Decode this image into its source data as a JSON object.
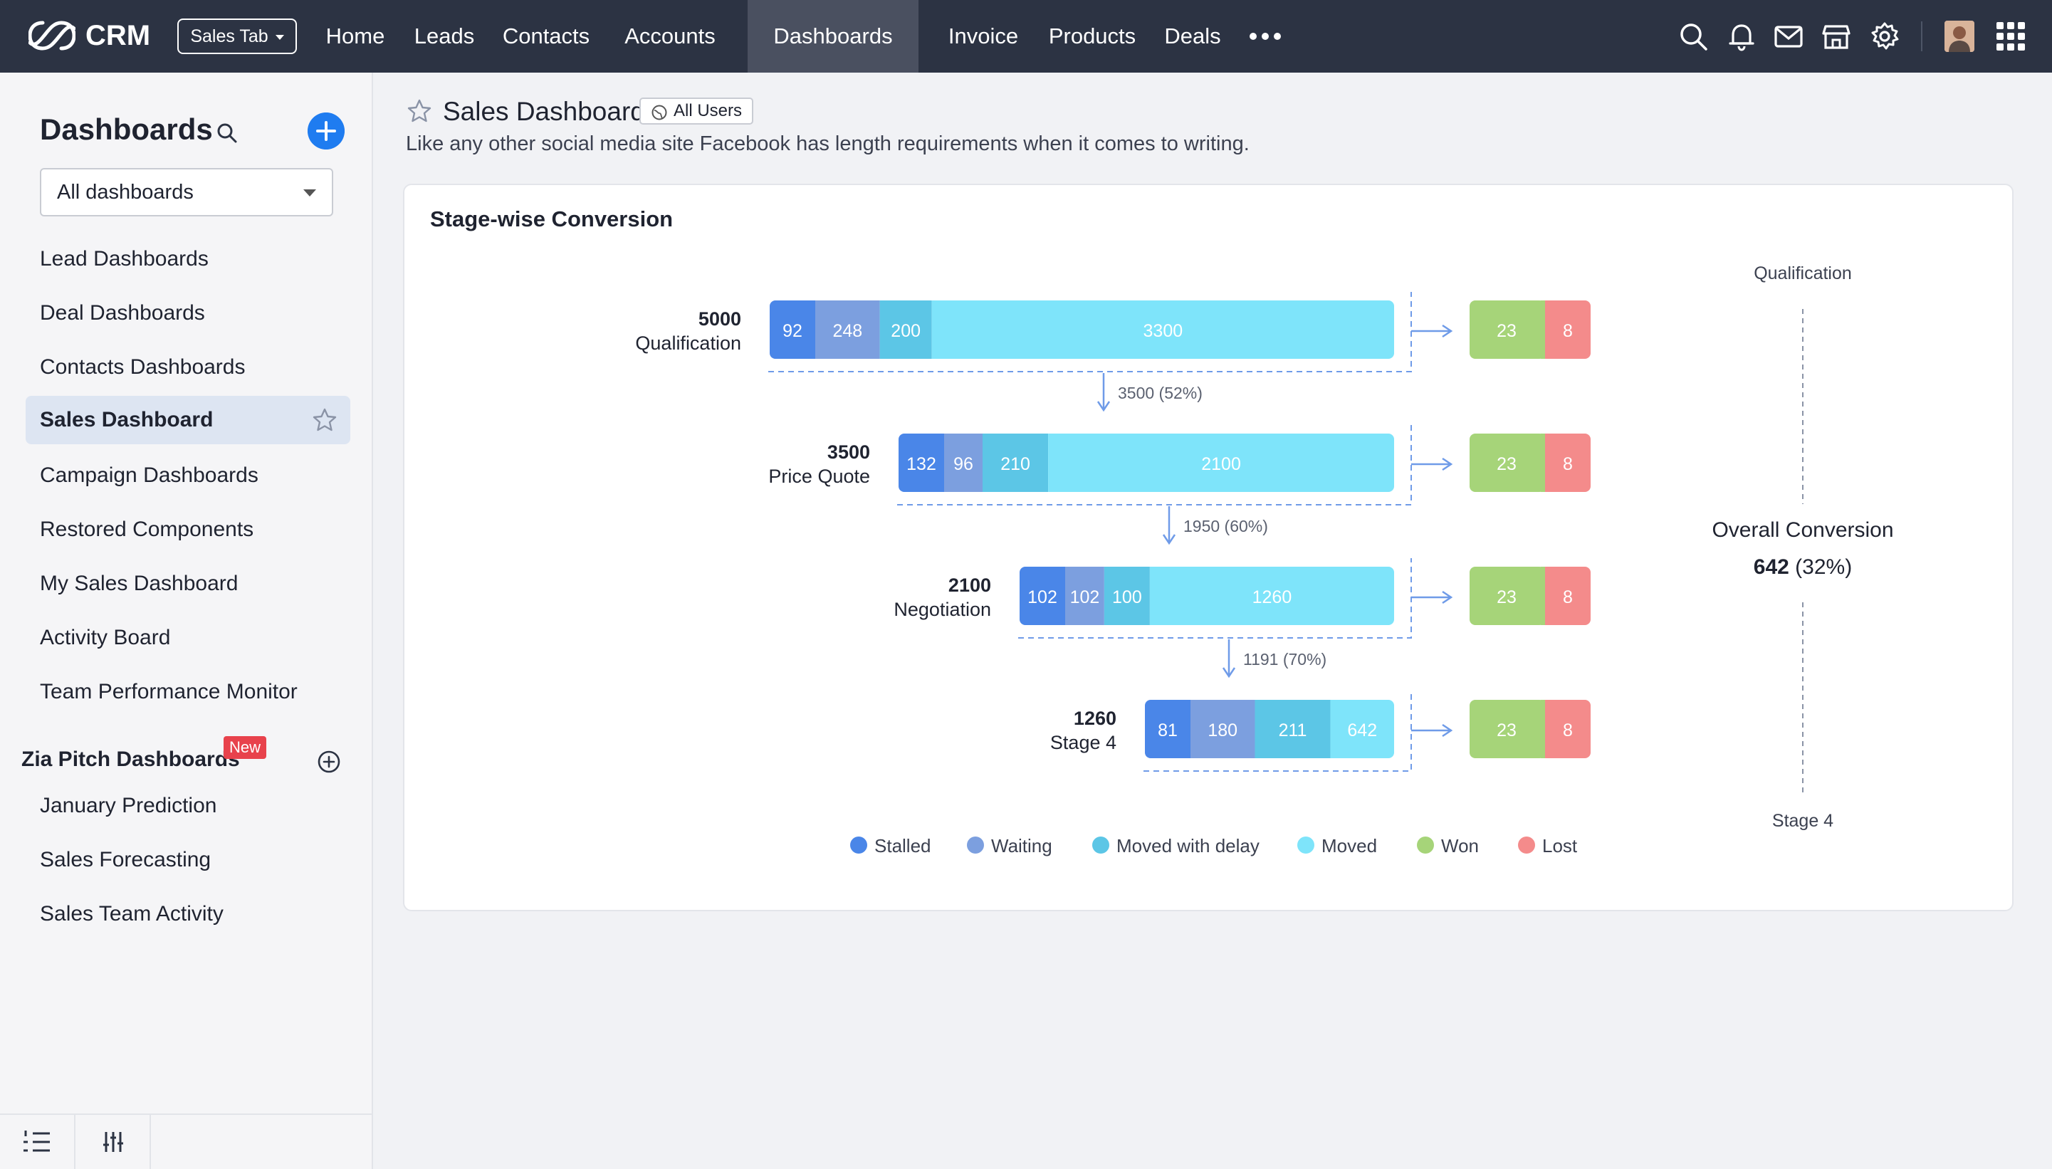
{
  "app": {
    "name": "CRM"
  },
  "topbar": {
    "sales_tab_label": "Sales Tab",
    "nav": [
      "Home",
      "Leads",
      "Contacts",
      "Accounts",
      "Dashboards",
      "Invoice",
      "Products",
      "Deals"
    ],
    "active_nav": "Dashboards",
    "icons": [
      "search-icon",
      "bell-icon",
      "mail-icon",
      "store-icon",
      "gear-icon",
      "avatar",
      "apps-grid-icon"
    ]
  },
  "sidebar": {
    "title": "Dashboards",
    "filter_value": "All dashboards",
    "items": [
      {
        "label": "Lead Dashboards"
      },
      {
        "label": "Deal Dashboards"
      },
      {
        "label": "Contacts Dashboards"
      },
      {
        "label": "Sales Dashboard",
        "active": true
      },
      {
        "label": "Campaign Dashboards"
      },
      {
        "label": "Restored Components"
      },
      {
        "label": "My Sales Dashboard"
      },
      {
        "label": "Activity Board"
      },
      {
        "label": "Team Performance Monitor"
      }
    ],
    "section_title": "Zia Pitch Dashboards",
    "new_badge": "New",
    "section_items": [
      {
        "label": "January Prediction"
      },
      {
        "label": "Sales Forecasting"
      },
      {
        "label": "Sales Team Activity"
      }
    ]
  },
  "dashboard": {
    "title": "Sales Dashboard",
    "visibility": "All Users",
    "description": "Like any other social media site Facebook has length requirements when it comes to writing."
  },
  "chart_data": {
    "type": "bar",
    "title": "Stage-wise Conversion",
    "colors": {
      "stalled": "#4a86e8",
      "waiting": "#7c9fdf",
      "moved_with_delay": "#5cc6e6",
      "moved": "#7ee4fa",
      "won": "#a6d479",
      "lost": "#f48b8b"
    },
    "stages": [
      {
        "name": "Qualification",
        "total": 5000,
        "stalled": 92,
        "waiting": 248,
        "moved_with_delay": 200,
        "moved": 3300,
        "won": 23,
        "lost": 8,
        "conversion_label": "3500 (52%)"
      },
      {
        "name": "Price Quote",
        "total": 3500,
        "stalled": 132,
        "waiting": 96,
        "moved_with_delay": 210,
        "moved": 2100,
        "won": 23,
        "lost": 8,
        "conversion_label": "1950 (60%)"
      },
      {
        "name": "Negotiation",
        "total": 2100,
        "stalled": 102,
        "waiting": 102,
        "moved_with_delay": 100,
        "moved": 1260,
        "won": 23,
        "lost": 8,
        "conversion_label": "1191 (70%)"
      },
      {
        "name": "Stage 4",
        "total": 1260,
        "stalled": 81,
        "waiting": 180,
        "moved_with_delay": 211,
        "moved": 642,
        "won": 23,
        "lost": 8
      }
    ],
    "overall": {
      "top_label": "Qualification",
      "title": "Overall Conversion",
      "value": "642",
      "percent": "(32%)",
      "bottom_label": "Stage 4"
    },
    "legend": [
      "Stalled",
      "Waiting",
      "Moved with delay",
      "Moved",
      "Won",
      "Lost"
    ]
  }
}
